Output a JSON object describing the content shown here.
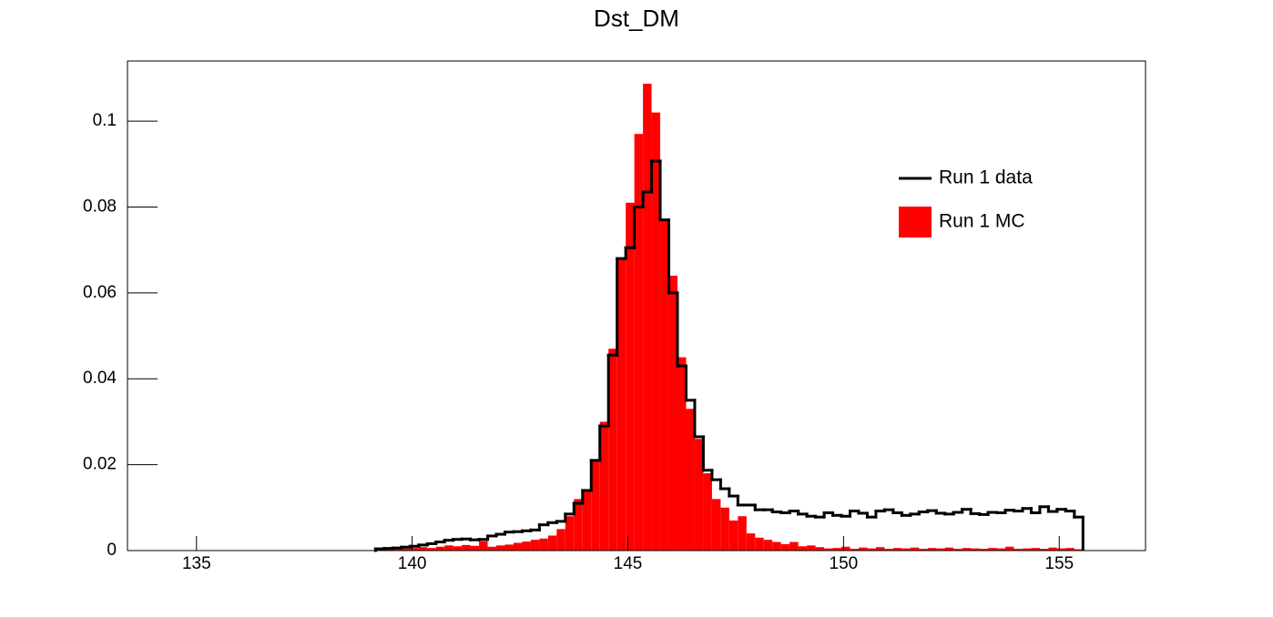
{
  "chart_data": {
    "type": "histogram",
    "title": "Dst_DM",
    "xlim": [
      133.4,
      157.0
    ],
    "ylim": [
      0,
      0.114
    ],
    "xticks": [
      135,
      140,
      145,
      150,
      155
    ],
    "yticks": [
      0,
      0.02,
      0.04,
      0.06,
      0.08,
      0.1
    ],
    "legend": "upper right",
    "bins": [
      139.15,
      139.35,
      139.55,
      139.75,
      139.95,
      140.15,
      140.35,
      140.55,
      140.75,
      140.95,
      141.15,
      141.35,
      141.55,
      141.75,
      141.95,
      142.15,
      142.35,
      142.55,
      142.75,
      142.95,
      143.15,
      143.35,
      143.55,
      143.75,
      143.95,
      144.15,
      144.35,
      144.55,
      144.75,
      144.95,
      145.15,
      145.35,
      145.55,
      145.75,
      145.95,
      146.15,
      146.35,
      146.55,
      146.75,
      146.95,
      147.15,
      147.35,
      147.55,
      147.75,
      147.95,
      148.15,
      148.35,
      148.55,
      148.75,
      148.95,
      149.15,
      149.35,
      149.55,
      149.75,
      149.95,
      150.15,
      150.35,
      150.55,
      150.75,
      150.95,
      151.15,
      151.35,
      151.55,
      151.75,
      151.95,
      152.15,
      152.35,
      152.55,
      152.75,
      152.95,
      153.15,
      153.35,
      153.55,
      153.75,
      153.95,
      154.15,
      154.35,
      154.55,
      154.75,
      154.95,
      155.15,
      155.35,
      155.55
    ],
    "series": [
      {
        "name": "Run 1 data",
        "color": "#000000",
        "style": "step",
        "values": [
          0.0004,
          0.0005,
          0.0006,
          0.0008,
          0.001,
          0.0013,
          0.0016,
          0.002,
          0.0024,
          0.0026,
          0.0027,
          0.0025,
          0.0026,
          0.0034,
          0.0038,
          0.0043,
          0.0044,
          0.0046,
          0.0048,
          0.006,
          0.0065,
          0.0068,
          0.0085,
          0.011,
          0.014,
          0.021,
          0.029,
          0.0455,
          0.068,
          0.0705,
          0.08,
          0.0835,
          0.0907,
          0.077,
          0.06,
          0.043,
          0.035,
          0.0265,
          0.0187,
          0.0165,
          0.0144,
          0.0127,
          0.0106,
          0.0106,
          0.0095,
          0.0095,
          0.009,
          0.0088,
          0.0092,
          0.0085,
          0.008,
          0.0078,
          0.0088,
          0.0082,
          0.008,
          0.0092,
          0.0087,
          0.0078,
          0.0092,
          0.0095,
          0.0088,
          0.0082,
          0.0085,
          0.009,
          0.0093,
          0.0087,
          0.0085,
          0.0089,
          0.0096,
          0.0086,
          0.0084,
          0.0089,
          0.0088,
          0.0094,
          0.0092,
          0.0098,
          0.0088,
          0.0102,
          0.0091,
          0.0096,
          0.0092,
          0.0078
        ]
      },
      {
        "name": "Run 1 MC",
        "color": "#ff0000",
        "style": "filled",
        "values": [
          0.0003,
          0.0004,
          0.0005,
          0.0005,
          0.0006,
          0.0008,
          0.0006,
          0.0009,
          0.0012,
          0.001,
          0.0013,
          0.0011,
          0.0022,
          0.0009,
          0.0012,
          0.0014,
          0.0018,
          0.0021,
          0.0025,
          0.0028,
          0.0035,
          0.005,
          0.008,
          0.012,
          0.014,
          0.021,
          0.03,
          0.047,
          0.068,
          0.081,
          0.097,
          0.1087,
          0.102,
          0.077,
          0.064,
          0.045,
          0.033,
          0.026,
          0.018,
          0.012,
          0.01,
          0.007,
          0.008,
          0.004,
          0.003,
          0.0025,
          0.002,
          0.0015,
          0.002,
          0.001,
          0.0012,
          0.0008,
          0.0005,
          0.0006,
          0.0009,
          0.0004,
          0.0007,
          0.0005,
          0.0008,
          0.0004,
          0.0006,
          0.0005,
          0.0007,
          0.0004,
          0.0006,
          0.0005,
          0.0007,
          0.0004,
          0.0006,
          0.0005,
          0.0004,
          0.0006,
          0.0005,
          0.0009,
          0.0004,
          0.0005,
          0.0006,
          0.0004,
          0.0007,
          0.0005,
          0.0006,
          0.0003
        ]
      }
    ]
  }
}
